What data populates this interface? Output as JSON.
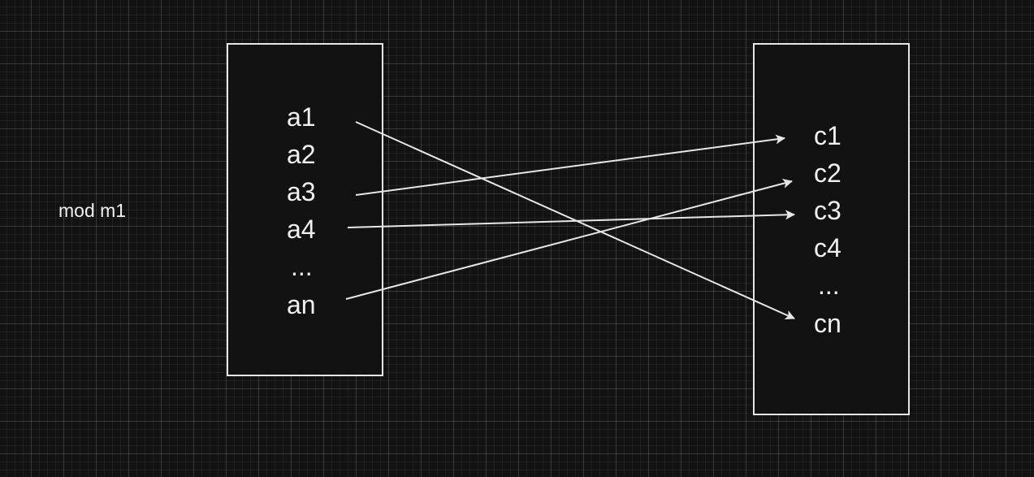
{
  "side_label": "mod m1",
  "left_items": [
    "a1",
    "a2",
    "a3",
    "a4",
    "...",
    "an"
  ],
  "right_items": [
    "c1",
    "c2",
    "c3",
    "c4",
    "...",
    "cn"
  ],
  "colors": {
    "background": "#121212",
    "stroke": "#e6e6e6",
    "text": "#f0f0f0"
  },
  "mappings": [
    {
      "from": "a1",
      "to": "cn"
    },
    {
      "from": "a3",
      "to": "c1"
    },
    {
      "from": "a4",
      "to": "c3"
    },
    {
      "from": "an",
      "to": "c2"
    }
  ]
}
